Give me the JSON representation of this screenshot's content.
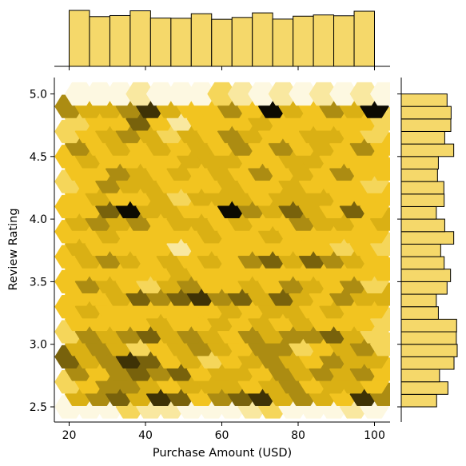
{
  "chart_data": {
    "type": "hexbin-joint",
    "xlabel": "Purchase Amount (USD)",
    "ylabel": "Review Rating",
    "xlim": [
      16,
      104
    ],
    "ylim": [
      2.38,
      5.12
    ],
    "xticks": [
      20,
      40,
      60,
      80,
      100
    ],
    "yticks": [
      2.5,
      3.0,
      3.5,
      4.0,
      4.5,
      5.0
    ],
    "colors": {
      "accent": "#f2c00e",
      "marginal_fill": "#f5d86a",
      "edge": "#000000"
    },
    "hex_grid": {
      "x_start": 20,
      "x_step": 5.3333,
      "x_count": 16,
      "y_start": 2.5,
      "y_step": 0.1,
      "y_count": 26,
      "value_scale": "0-9 relative density",
      "rows": [
        [
          1,
          1,
          1,
          3,
          2,
          2,
          1,
          1,
          1,
          2,
          3,
          1,
          1,
          1,
          2,
          1
        ],
        [
          5,
          6,
          7,
          5,
          8,
          7,
          4,
          6,
          7,
          8,
          5,
          6,
          5,
          4,
          8,
          6
        ],
        [
          3,
          4,
          6,
          6,
          5,
          4,
          5,
          5,
          5,
          4,
          5,
          6,
          4,
          5,
          5,
          4
        ],
        [
          6,
          4,
          6,
          7,
          6,
          7,
          4,
          5,
          5,
          4,
          6,
          5,
          6,
          5,
          6,
          4
        ],
        [
          7,
          5,
          6,
          8,
          7,
          4,
          5,
          3,
          4,
          5,
          6,
          5,
          4,
          6,
          5,
          5
        ],
        [
          5,
          6,
          5,
          3,
          4,
          5,
          6,
          5,
          4,
          6,
          6,
          3,
          4,
          5,
          6,
          3
        ],
        [
          3,
          6,
          5,
          6,
          7,
          5,
          6,
          5,
          4,
          6,
          5,
          6,
          6,
          7,
          5,
          3
        ],
        [
          4,
          4,
          4,
          4,
          5,
          4,
          4,
          5,
          4,
          5,
          4,
          5,
          4,
          4,
          4,
          3
        ],
        [
          4,
          5,
          4,
          4,
          4,
          4,
          4,
          4,
          5,
          4,
          5,
          5,
          4,
          5,
          4,
          4
        ],
        [
          4,
          4,
          5,
          7,
          6,
          7,
          8,
          6,
          7,
          5,
          7,
          5,
          4,
          6,
          5,
          5
        ],
        [
          4,
          6,
          5,
          4,
          3,
          5,
          6,
          4,
          4,
          5,
          4,
          6,
          5,
          4,
          6,
          3
        ],
        [
          4,
          4,
          4,
          4,
          4,
          5,
          4,
          4,
          4,
          4,
          4,
          4,
          4,
          4,
          4,
          4
        ],
        [
          4,
          5,
          6,
          5,
          4,
          5,
          4,
          5,
          4,
          6,
          7,
          5,
          7,
          6,
          5,
          4
        ],
        [
          5,
          4,
          4,
          4,
          4,
          2,
          4,
          4,
          4,
          4,
          4,
          4,
          4,
          3,
          4,
          3
        ],
        [
          4,
          4,
          5,
          4,
          4,
          4,
          4,
          5,
          4,
          4,
          5,
          4,
          4,
          4,
          4,
          4
        ],
        [
          5,
          6,
          5,
          6,
          4,
          5,
          5,
          4,
          5,
          4,
          4,
          6,
          5,
          5,
          4,
          5
        ],
        [
          4,
          4,
          7,
          9,
          5,
          5,
          4,
          4,
          9,
          6,
          5,
          7,
          5,
          4,
          7,
          4
        ],
        [
          4,
          5,
          4,
          4,
          5,
          3,
          5,
          5,
          5,
          4,
          5,
          5,
          5,
          4,
          4,
          4
        ],
        [
          3,
          4,
          6,
          5,
          5,
          4,
          4,
          4,
          5,
          4,
          4,
          5,
          4,
          4,
          4,
          3
        ],
        [
          4,
          4,
          6,
          5,
          4,
          5,
          4,
          5,
          4,
          6,
          4,
          5,
          4,
          6,
          4,
          4
        ],
        [
          4,
          5,
          4,
          4,
          4,
          4,
          5,
          5,
          5,
          4,
          4,
          5,
          5,
          4,
          4,
          4
        ],
        [
          6,
          4,
          5,
          4,
          5,
          4,
          5,
          4,
          6,
          4,
          6,
          4,
          5,
          4,
          6,
          4
        ],
        [
          3,
          4,
          5,
          6,
          5,
          3,
          5,
          4,
          6,
          5,
          4,
          4,
          5,
          5,
          4,
          3
        ],
        [
          3,
          4,
          4,
          7,
          4,
          2,
          4,
          4,
          4,
          5,
          4,
          4,
          4,
          4,
          4,
          3
        ],
        [
          6,
          5,
          5,
          6,
          8,
          5,
          4,
          4,
          6,
          4,
          9,
          5,
          4,
          6,
          5,
          9
        ],
        [
          1,
          1,
          1,
          2,
          1,
          1,
          1,
          3,
          2,
          1,
          2,
          1,
          2,
          1,
          2,
          1
        ]
      ]
    },
    "marginal_x": {
      "bin_edges": [
        20,
        25.33,
        30.67,
        36,
        41.33,
        46.67,
        52,
        57.33,
        62.67,
        68,
        73.33,
        78.67,
        84,
        89.33,
        94.67,
        100
      ],
      "counts": [
        270,
        240,
        245,
        268,
        233,
        232,
        254,
        227,
        236,
        258,
        228,
        242,
        248,
        244,
        266
      ]
    },
    "marginal_y": {
      "bin_edges": [
        2.5,
        2.6,
        2.7,
        2.8,
        2.9,
        3.0,
        3.1,
        3.2,
        3.3,
        3.4,
        3.5,
        3.6,
        3.7,
        3.8,
        3.9,
        4.0,
        4.1,
        4.2,
        4.3,
        4.4,
        4.5,
        4.6,
        4.7,
        4.8,
        4.9,
        5.0
      ],
      "counts": [
        122,
        161,
        132,
        182,
        193,
        190,
        191,
        128,
        121,
        158,
        170,
        148,
        136,
        181,
        150,
        121,
        148,
        147,
        125,
        128,
        181,
        150,
        171,
        172,
        158
      ]
    }
  }
}
